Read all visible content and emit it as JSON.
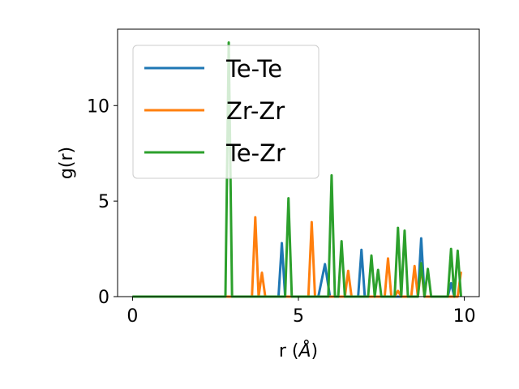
{
  "chart_data": {
    "type": "line",
    "xlabel_main": "r (",
    "xlabel_unit": "Å",
    "xlabel_close": ")",
    "ylabel": "g(r)",
    "xlim": [
      -0.45,
      10.45
    ],
    "ylim": [
      0,
      14.0
    ],
    "xticks": [
      0,
      5,
      10
    ],
    "xtick_labels": [
      "0",
      "5",
      "10"
    ],
    "yticks": [
      0,
      5,
      10
    ],
    "ytick_labels": [
      "0",
      "5",
      "10"
    ],
    "legend_position": "upper-left",
    "series": [
      {
        "name": "Te-Te",
        "color": "#1f77b4",
        "x": [
          0,
          4.4,
          4.5,
          4.6,
          5.6,
          5.8,
          5.95,
          6.8,
          6.9,
          7.0,
          8.6,
          8.7,
          8.8,
          9.5,
          9.6,
          9.7
        ],
        "y": [
          0,
          0,
          2.8,
          0,
          0,
          1.7,
          0,
          0,
          2.45,
          0,
          0,
          3.05,
          0,
          0,
          0.7,
          0
        ]
      },
      {
        "name": "Zr-Zr",
        "color": "#ff7f0e",
        "x": [
          0,
          3.6,
          3.7,
          3.8,
          3.9,
          4.0,
          5.3,
          5.4,
          5.5,
          6.4,
          6.5,
          6.6,
          7.6,
          7.7,
          7.8,
          7.9,
          8.0,
          8.1,
          8.4,
          8.5,
          8.6,
          8.7,
          8.8,
          9.8,
          9.9
        ],
        "y": [
          0,
          0,
          4.15,
          0,
          1.25,
          0,
          0,
          3.9,
          0,
          0,
          1.35,
          0,
          0,
          2.0,
          0,
          0,
          0.3,
          0,
          0,
          1.6,
          0,
          1.55,
          0,
          0,
          1.3
        ]
      },
      {
        "name": "Te-Zr",
        "color": "#2ca02c",
        "x": [
          0,
          2.8,
          2.9,
          3.0,
          4.6,
          4.7,
          4.8,
          5.9,
          6.0,
          6.1,
          6.2,
          6.3,
          6.4,
          7.1,
          7.2,
          7.3,
          7.4,
          7.5,
          7.6,
          7.9,
          8.0,
          8.1,
          8.2,
          8.3,
          8.6,
          8.7,
          8.8,
          8.9,
          9.0,
          9.5,
          9.6,
          9.7,
          9.8,
          9.9
        ],
        "y": [
          0,
          0,
          13.3,
          0,
          0,
          5.15,
          0,
          0,
          6.35,
          0,
          0,
          2.9,
          0,
          0,
          2.15,
          0,
          1.4,
          0,
          0,
          0,
          3.6,
          0,
          3.45,
          0,
          0,
          1.75,
          0,
          1.45,
          0,
          0,
          2.5,
          0,
          2.4,
          0
        ]
      }
    ]
  }
}
